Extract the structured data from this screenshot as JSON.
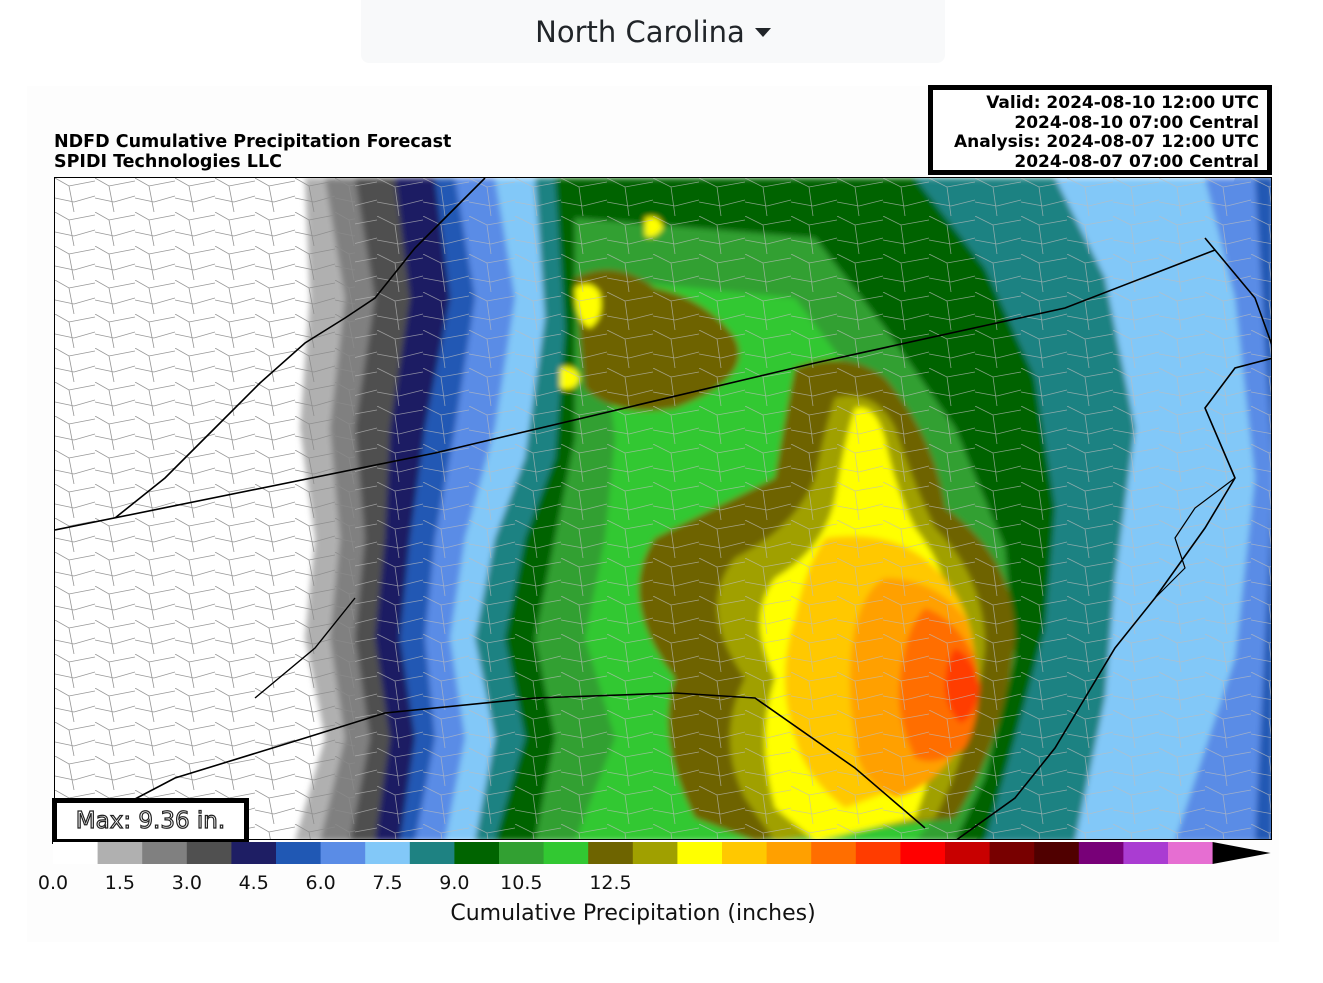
{
  "dropdown": {
    "selected": "North Carolina",
    "icon": "caret-down-icon"
  },
  "figure": {
    "title_line1": "NDFD Cumulative Precipitation Forecast",
    "title_line2": "SPIDI Technologies LLC",
    "valid_line1": "Valid: 2024-08-10 12:00 UTC",
    "valid_line2": "2024-08-10 07:00 Central",
    "analysis_line1": "Analysis: 2024-08-07 12:00 UTC",
    "analysis_line2": "2024-08-07 07:00 Central",
    "max_label": "Max: 9.36 in."
  },
  "colorbar": {
    "label": "Cumulative Precipitation (inches)",
    "ticks": [
      "0.0",
      "1.5",
      "3.0",
      "4.5",
      "6.0",
      "7.5",
      "9.0",
      "10.5",
      "12.5"
    ],
    "tick_values": [
      0.0,
      1.5,
      3.0,
      4.5,
      6.0,
      7.5,
      9.0,
      10.5,
      12.5
    ],
    "colors": [
      "#ffffff",
      "#b0b0b0",
      "#808080",
      "#505050",
      "#1e1e64",
      "#2058b4",
      "#5a8ce6",
      "#82c8f8",
      "#1e8282",
      "#006400",
      "#32a032",
      "#32c832",
      "#6e6400",
      "#a0a000",
      "#ffff00",
      "#ffc800",
      "#ffa000",
      "#ff6e00",
      "#ff3c00",
      "#ff0000",
      "#c80000",
      "#780000",
      "#500000",
      "#780078",
      "#aa3cd2",
      "#e66ed2"
    ],
    "extend_color": "#000000"
  }
}
